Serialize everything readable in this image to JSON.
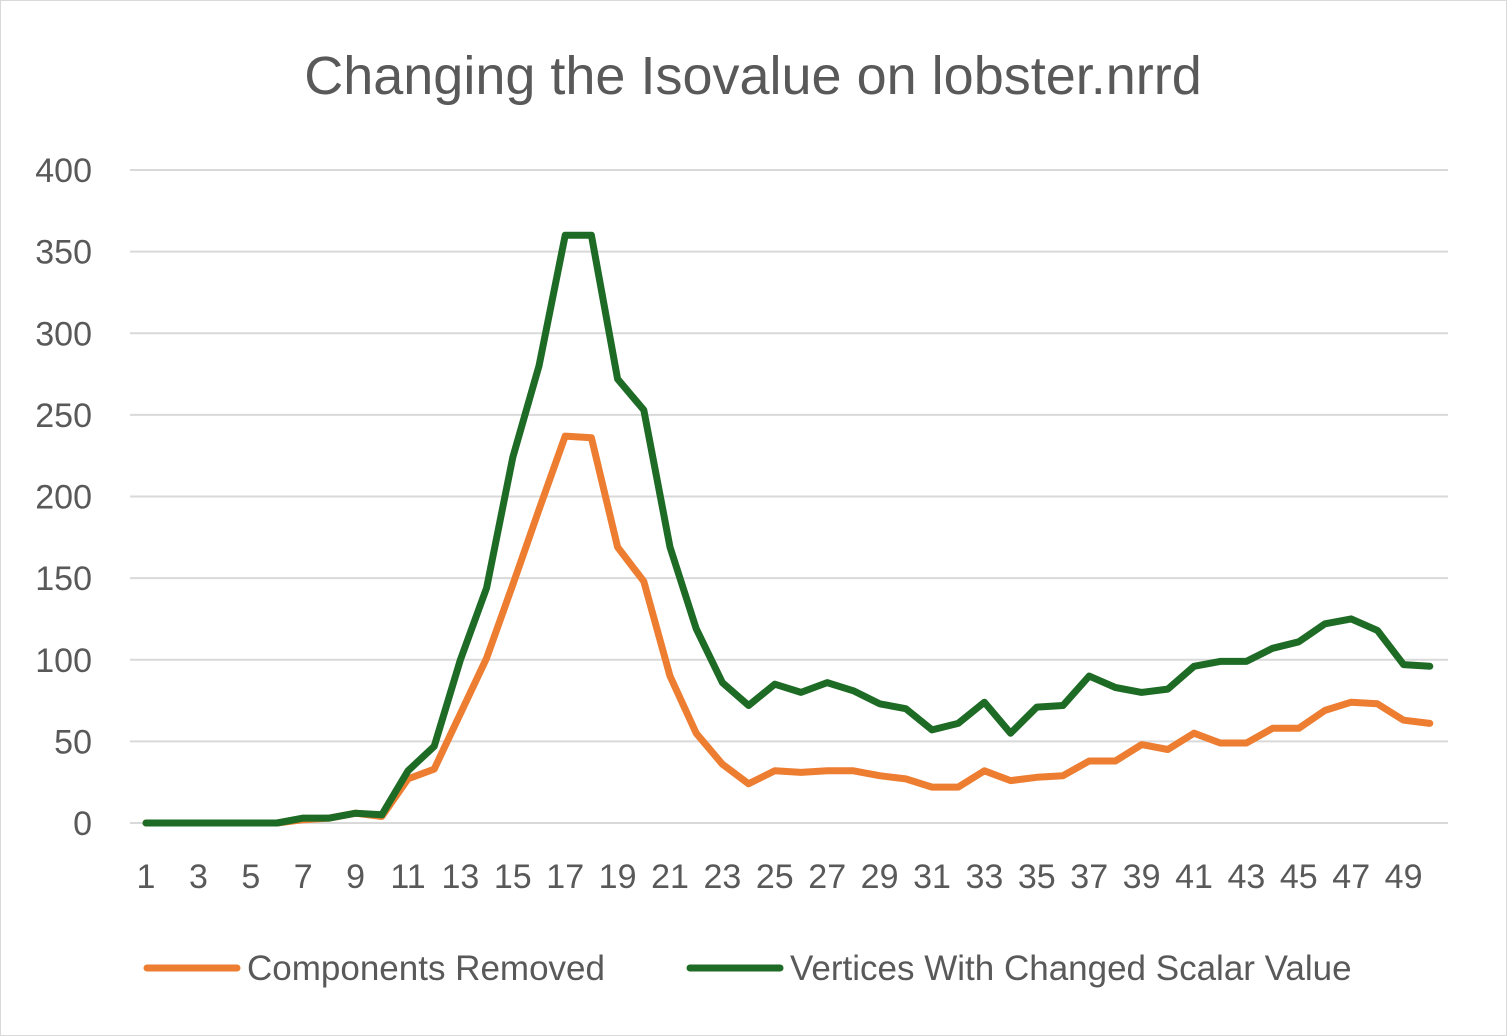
{
  "chart_data": {
    "type": "line",
    "title": "Changing the Isovalue on lobster.nrrd",
    "xlabel": "",
    "ylabel": "",
    "ylim": [
      0,
      400
    ],
    "y_ticks": [
      "0",
      "50",
      "100",
      "150",
      "200",
      "250",
      "300",
      "350",
      "400"
    ],
    "categories": [
      "1",
      "2",
      "3",
      "4",
      "5",
      "6",
      "7",
      "8",
      "9",
      "10",
      "11",
      "12",
      "13",
      "14",
      "15",
      "16",
      "17",
      "18",
      "19",
      "20",
      "21",
      "22",
      "23",
      "24",
      "25",
      "26",
      "27",
      "28",
      "29",
      "30",
      "31",
      "32",
      "33",
      "34",
      "35",
      "36",
      "37",
      "38",
      "39",
      "40",
      "41",
      "42",
      "43",
      "44",
      "45",
      "46",
      "47",
      "48",
      "49",
      "50"
    ],
    "x_tick_labels": [
      "1",
      "3",
      "5",
      "7",
      "9",
      "11",
      "13",
      "15",
      "17",
      "19",
      "21",
      "23",
      "25",
      "27",
      "29",
      "31",
      "33",
      "35",
      "37",
      "39",
      "41",
      "43",
      "45",
      "47",
      "49"
    ],
    "grid": true,
    "legend_position": "bottom",
    "series": [
      {
        "name": "Components Removed",
        "color": "#ed7d31",
        "values": [
          0,
          0,
          0,
          0,
          0,
          0,
          2,
          3,
          6,
          4,
          27,
          33,
          67,
          101,
          146,
          192,
          237,
          236,
          169,
          148,
          90,
          55,
          36,
          24,
          32,
          31,
          32,
          32,
          29,
          27,
          22,
          22,
          32,
          26,
          28,
          29,
          38,
          38,
          48,
          45,
          55,
          49,
          49,
          58,
          58,
          69,
          74,
          73,
          63,
          61
        ]
      },
      {
        "name": "Vertices With Changed Scalar Value",
        "color": "#1e6b25",
        "values": [
          0,
          0,
          0,
          0,
          0,
          0,
          3,
          3,
          6,
          5,
          32,
          47,
          100,
          144,
          224,
          280,
          360,
          360,
          272,
          253,
          169,
          119,
          86,
          72,
          85,
          80,
          86,
          81,
          73,
          70,
          57,
          61,
          74,
          55,
          71,
          72,
          90,
          83,
          80,
          82,
          96,
          99,
          99,
          107,
          111,
          122,
          125,
          118,
          97,
          96
        ]
      }
    ]
  }
}
